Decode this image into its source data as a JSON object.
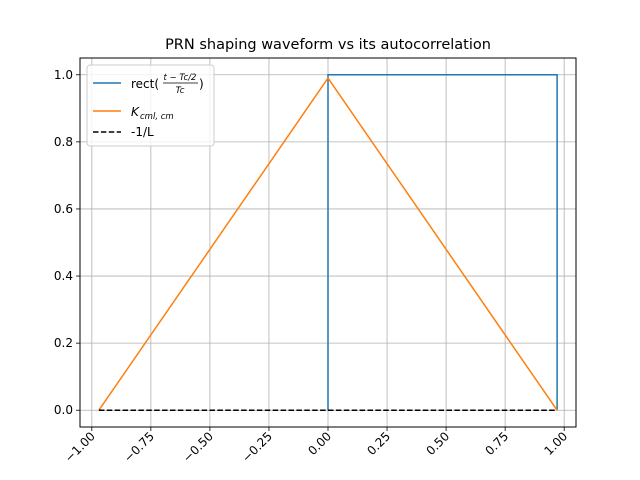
{
  "chart_data": {
    "type": "line",
    "title": "PRN shaping waveform vs its autocorrelation",
    "xlabel": "",
    "ylabel": "",
    "xlim": [
      -1.05,
      1.05
    ],
    "ylim": [
      -0.05,
      1.05
    ],
    "grid": true,
    "legend_position": "upper-left",
    "x_ticks": [
      -1.0,
      -0.75,
      -0.5,
      -0.25,
      0.0,
      0.25,
      0.5,
      0.75,
      1.0
    ],
    "x_tick_labels": [
      "−1.00",
      "−0.75",
      "−0.50",
      "−0.25",
      "0.00",
      "0.25",
      "0.50",
      "0.75",
      "1.00"
    ],
    "y_ticks": [
      0.0,
      0.2,
      0.4,
      0.6,
      0.8,
      1.0
    ],
    "y_tick_labels": [
      "0.0",
      "0.2",
      "0.4",
      "0.6",
      "0.8",
      "1.0"
    ],
    "series": [
      {
        "name": "rect(t−Tc/2 / Tc)",
        "legend_main": "rect(",
        "legend_num": "t − Tc/2",
        "legend_den": "Tc",
        "legend_close": ")",
        "color": "#1f77b4",
        "dash": "solid",
        "x": [
          0.0,
          0.0,
          0.97,
          0.97
        ],
        "y": [
          0.0,
          1.0,
          1.0,
          0.0
        ]
      },
      {
        "name": "K_cml,cm",
        "legend_main": "K",
        "legend_sub": "cml, cm",
        "color": "#ff7f0e",
        "dash": "solid",
        "x": [
          -0.97,
          0.0,
          0.97
        ],
        "y": [
          0.0,
          0.99,
          0.0
        ]
      },
      {
        "name": "-1/L",
        "legend_main": "-1/L",
        "color": "#000000",
        "dash": "dashed",
        "x": [
          -0.97,
          0.97
        ],
        "y": [
          0.0,
          0.0
        ]
      }
    ]
  }
}
